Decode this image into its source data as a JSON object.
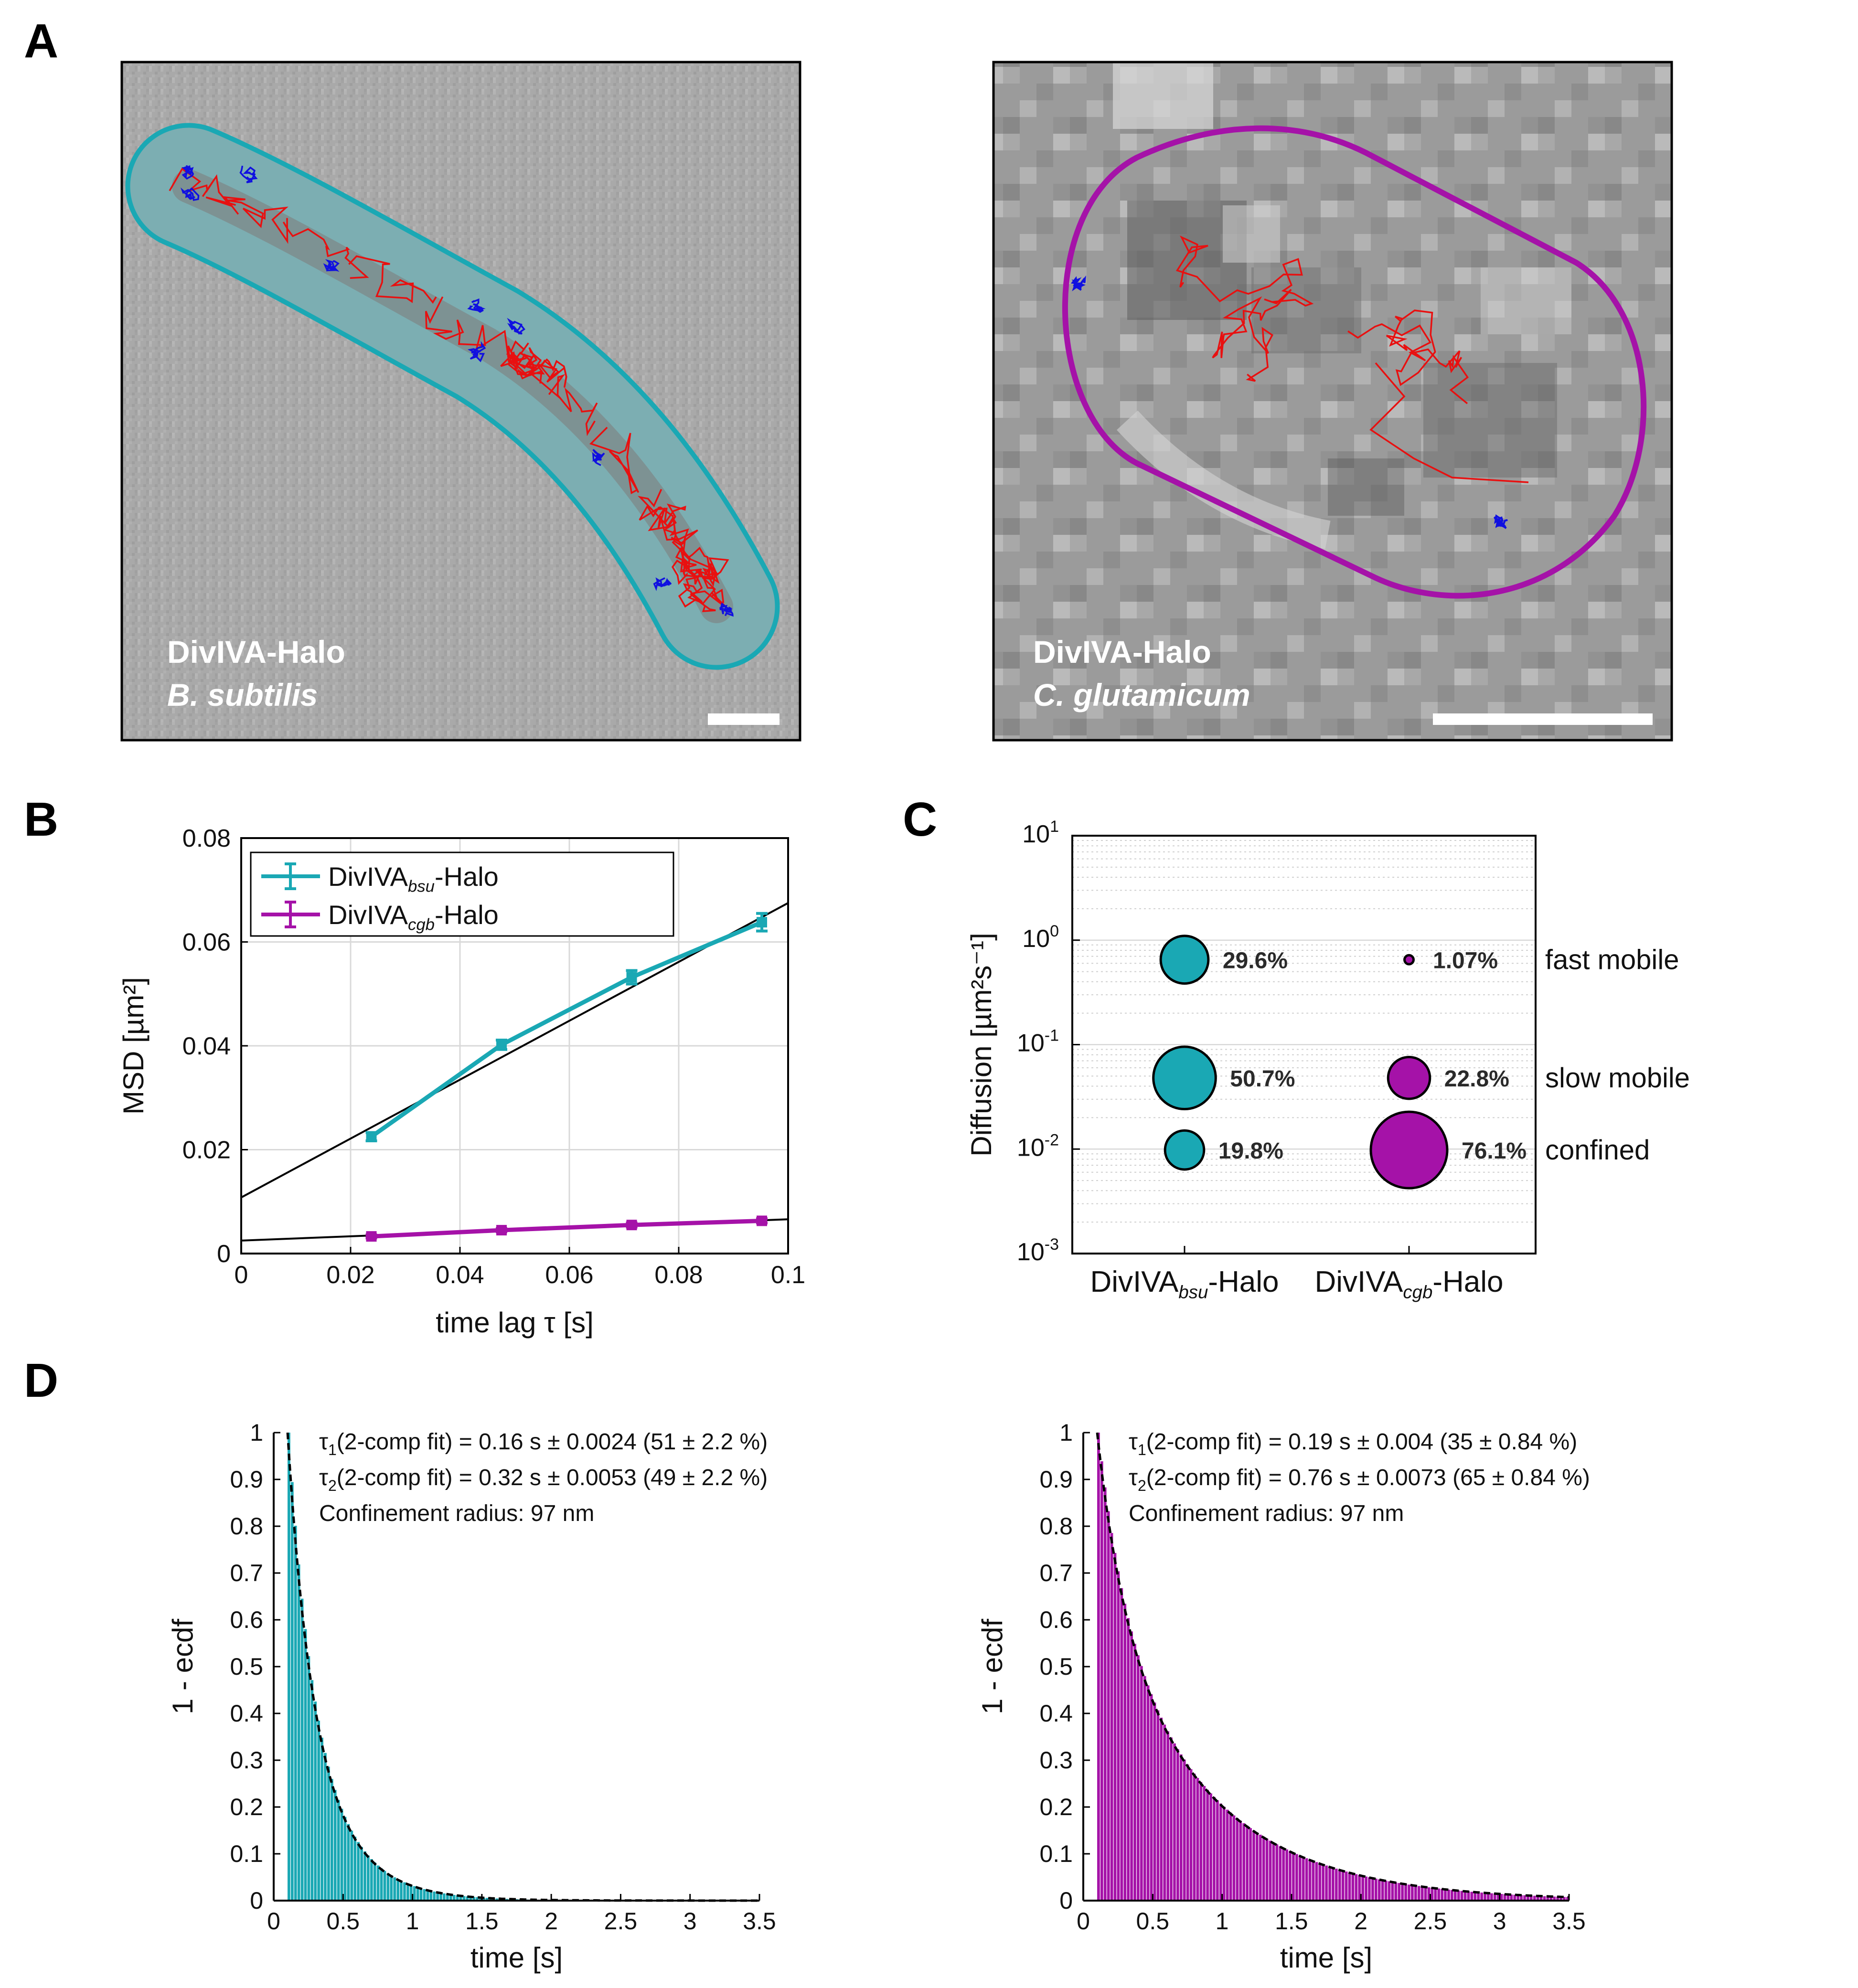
{
  "colors": {
    "teal": "#1AA8B4",
    "magenta": "#A512A8",
    "red": "#E81010",
    "blue": "#1010E0",
    "fit": "#000000",
    "grid": "#d9d9d9"
  },
  "panel_labels": {
    "a": "A",
    "b": "B",
    "c": "C",
    "d": "D"
  },
  "micrographs": [
    {
      "protein": "DivIVA-Halo",
      "species": "B. subtilis",
      "outline_color": "#1AA8B4"
    },
    {
      "protein": "DivIVA-Halo",
      "species": "C. glutamicum",
      "outline_color": "#A512A8"
    }
  ],
  "chart_data": [
    {
      "panel": "B",
      "type": "line",
      "xlabel": "time lag τ [s]",
      "ylabel": "MSD [µm²]",
      "xlim": [
        0,
        0.1
      ],
      "ylim": [
        0,
        0.08
      ],
      "xticks": [
        "0",
        "0.02",
        "0.04",
        "0.06",
        "0.08",
        "0.1"
      ],
      "yticks": [
        "0",
        "0.02",
        "0.04",
        "0.06",
        "0.08"
      ],
      "grid": true,
      "legend_position": "top-left",
      "series": [
        {
          "name": "DivIVA",
          "subscript": "bsu",
          "suffix": "-Halo",
          "color": "#1AA8B4",
          "x": [
            0.0238,
            0.0476,
            0.0714,
            0.0952
          ],
          "y": [
            0.0225,
            0.0402,
            0.0532,
            0.0638
          ],
          "err": [
            0.0008,
            0.0009,
            0.0013,
            0.0017
          ],
          "fit": {
            "x": [
              0,
              0.1
            ],
            "y": [
              0.0108,
              0.0675
            ]
          }
        },
        {
          "name": "DivIVA",
          "subscript": "cgb",
          "suffix": "-Halo",
          "color": "#A512A8",
          "x": [
            0.0238,
            0.0476,
            0.0714,
            0.0952
          ],
          "y": [
            0.0033,
            0.0045,
            0.0055,
            0.0063
          ],
          "err": [
            0.0003,
            0.0003,
            0.0004,
            0.0004
          ],
          "fit": {
            "x": [
              0,
              0.1
            ],
            "y": [
              0.0025,
              0.0066
            ]
          }
        }
      ]
    },
    {
      "panel": "C",
      "type": "scatter",
      "ylabel": "Diffusion [µm²s⁻¹]",
      "yscale": "log",
      "ylim": [
        0.001,
        10
      ],
      "yticks": [
        {
          "base": "10",
          "exp": "1",
          "value": 10
        },
        {
          "base": "10",
          "exp": "0",
          "value": 1
        },
        {
          "base": "10",
          "exp": "-1",
          "value": 0.1
        },
        {
          "base": "10",
          "exp": "-2",
          "value": 0.01
        },
        {
          "base": "10",
          "exp": "-3",
          "value": 0.001
        }
      ],
      "categories": [
        {
          "name": "DivIVA",
          "subscript": "bsu",
          "suffix": "-Halo"
        },
        {
          "name": "DivIVA",
          "subscript": "cgb",
          "suffix": "-Halo"
        }
      ],
      "state_labels": [
        {
          "label": "fast mobile",
          "value": 0.65
        },
        {
          "label": "slow mobile",
          "value": 0.048
        },
        {
          "label": "confined",
          "value": 0.0098
        }
      ],
      "points": [
        {
          "category": 0,
          "state": "fast mobile",
          "value": 0.65,
          "fraction": 29.6,
          "label": "29.6%",
          "color": "#1AA8B4"
        },
        {
          "category": 0,
          "state": "slow mobile",
          "value": 0.048,
          "fraction": 50.7,
          "label": "50.7%",
          "color": "#1AA8B4"
        },
        {
          "category": 0,
          "state": "confined",
          "value": 0.0098,
          "fraction": 19.8,
          "label": "19.8%",
          "color": "#1AA8B4"
        },
        {
          "category": 1,
          "state": "fast mobile",
          "value": 0.65,
          "fraction": 1.07,
          "label": "1.07%",
          "color": "#A512A8"
        },
        {
          "category": 1,
          "state": "slow mobile",
          "value": 0.048,
          "fraction": 22.8,
          "label": "22.8%",
          "color": "#A512A8"
        },
        {
          "category": 1,
          "state": "confined",
          "value": 0.0098,
          "fraction": 76.1,
          "label": "76.1%",
          "color": "#A512A8"
        }
      ]
    },
    {
      "panel": "D-left",
      "type": "bar",
      "xlabel": "time [s]",
      "ylabel": "1 - ecdf",
      "xlim": [
        0,
        3.5
      ],
      "ylim": [
        0,
        1
      ],
      "xticks": [
        "0",
        "0.5",
        "1",
        "1.5",
        "2",
        "2.5",
        "3",
        "3.5"
      ],
      "yticks": [
        "0",
        "0.1",
        "0.2",
        "0.3",
        "0.4",
        "0.5",
        "0.6",
        "0.7",
        "0.8",
        "0.9",
        "1"
      ],
      "color": "#1AA8B4",
      "bin_start": 0.1,
      "bin_width": 0.0238,
      "fit": {
        "tau1": 0.16,
        "frac1": 0.51,
        "tau2": 0.32,
        "frac2": 0.49,
        "t0": 0.1
      },
      "annotations": [
        {
          "sym": "τ",
          "sub": "1",
          "text": "(2-comp fit) = 0.16 s ± 0.0024 (51 ± 2.2 %)"
        },
        {
          "sym": "τ",
          "sub": "2",
          "text": "(2-comp fit) = 0.32 s ± 0.0053 (49 ± 2.2 %)"
        },
        {
          "sym": "",
          "sub": "",
          "text": "Confinement radius: 97 nm"
        }
      ]
    },
    {
      "panel": "D-right",
      "type": "bar",
      "xlabel": "time [s]",
      "ylabel": "1 - ecdf",
      "xlim": [
        0,
        3.5
      ],
      "ylim": [
        0,
        1
      ],
      "xticks": [
        "0",
        "0.5",
        "1",
        "1.5",
        "2",
        "2.5",
        "3",
        "3.5"
      ],
      "yticks": [
        "0",
        "0.1",
        "0.2",
        "0.3",
        "0.4",
        "0.5",
        "0.6",
        "0.7",
        "0.8",
        "0.9",
        "1"
      ],
      "color": "#A512A8",
      "bin_start": 0.1,
      "bin_width": 0.0238,
      "fit": {
        "tau1": 0.19,
        "frac1": 0.35,
        "tau2": 0.76,
        "frac2": 0.65,
        "t0": 0.1
      },
      "annotations": [
        {
          "sym": "τ",
          "sub": "1",
          "text": "(2-comp fit) = 0.19 s ± 0.004 (35 ± 0.84 %)"
        },
        {
          "sym": "τ",
          "sub": "2",
          "text": "(2-comp fit) = 0.76 s ± 0.0073 (65 ± 0.84 %)"
        },
        {
          "sym": "",
          "sub": "",
          "text": "Confinement radius: 97 nm"
        }
      ]
    }
  ]
}
